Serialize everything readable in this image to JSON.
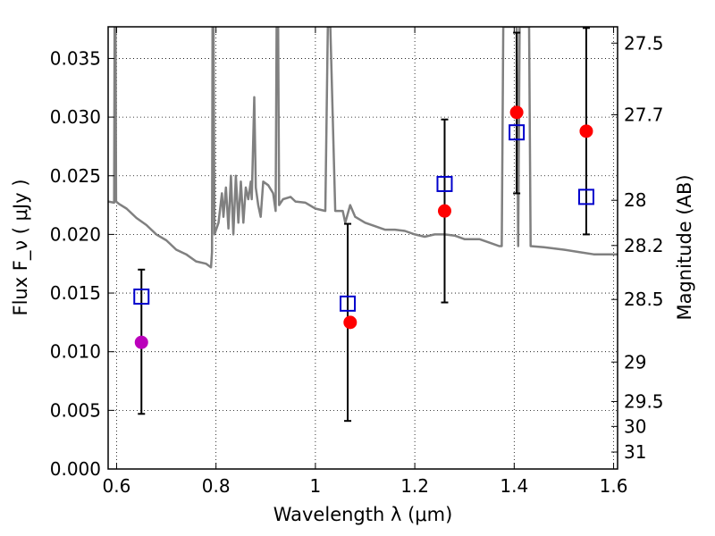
{
  "chart_data": {
    "type": "scatter",
    "xlabel": "Wavelength  λ (μm)",
    "ylabel": "Flux  F_ν  ( μJy )",
    "y2label": "Magnitude (AB)",
    "xlim": [
      0.583,
      1.608
    ],
    "ylim": [
      0.0,
      0.0377
    ],
    "grid": true,
    "x_ticks": [
      {
        "value": 0.6,
        "label": "0.6"
      },
      {
        "value": 0.8,
        "label": "0.8"
      },
      {
        "value": 1.0,
        "label": "1"
      },
      {
        "value": 1.2,
        "label": "1.2"
      },
      {
        "value": 1.4,
        "label": "1.4"
      },
      {
        "value": 1.6,
        "label": "1.6"
      }
    ],
    "y_ticks": [
      {
        "value": 0.0,
        "label": "0.000"
      },
      {
        "value": 0.005,
        "label": "0.005"
      },
      {
        "value": 0.01,
        "label": "0.010"
      },
      {
        "value": 0.015,
        "label": "0.015"
      },
      {
        "value": 0.02,
        "label": "0.020"
      },
      {
        "value": 0.025,
        "label": "0.025"
      },
      {
        "value": 0.03,
        "label": "0.030"
      },
      {
        "value": 0.035,
        "label": "0.035"
      }
    ],
    "y2_ticks": [
      {
        "value": 27.5,
        "label": "27.5"
      },
      {
        "value": 27.7,
        "label": "27.7"
      },
      {
        "value": 28.0,
        "label": "28"
      },
      {
        "value": 28.2,
        "label": "28.2"
      },
      {
        "value": 28.5,
        "label": "28.5"
      },
      {
        "value": 29.0,
        "label": "29"
      },
      {
        "value": 29.5,
        "label": "29.5"
      },
      {
        "value": 30.0,
        "label": "30"
      },
      {
        "value": 31.0,
        "label": "31"
      }
    ],
    "model_spectrum": {
      "color": "#808080",
      "points": [
        [
          0.583,
          0.0228
        ],
        [
          0.595,
          0.0227
        ],
        [
          0.596,
          0.0377
        ],
        [
          0.598,
          0.0377
        ],
        [
          0.599,
          0.0228
        ],
        [
          0.605,
          0.0226
        ],
        [
          0.62,
          0.0222
        ],
        [
          0.64,
          0.0214
        ],
        [
          0.66,
          0.0208
        ],
        [
          0.68,
          0.02
        ],
        [
          0.7,
          0.0195
        ],
        [
          0.72,
          0.0187
        ],
        [
          0.74,
          0.0183
        ],
        [
          0.76,
          0.0177
        ],
        [
          0.78,
          0.0175
        ],
        [
          0.79,
          0.0172
        ],
        [
          0.792,
          0.0185
        ],
        [
          0.793,
          0.0377
        ],
        [
          0.795,
          0.0377
        ],
        [
          0.797,
          0.02
        ],
        [
          0.805,
          0.021
        ],
        [
          0.812,
          0.0235
        ],
        [
          0.815,
          0.0215
        ],
        [
          0.82,
          0.024
        ],
        [
          0.825,
          0.0205
        ],
        [
          0.83,
          0.025
        ],
        [
          0.835,
          0.02
        ],
        [
          0.84,
          0.025
        ],
        [
          0.845,
          0.021
        ],
        [
          0.85,
          0.0245
        ],
        [
          0.855,
          0.021
        ],
        [
          0.86,
          0.024
        ],
        [
          0.865,
          0.023
        ],
        [
          0.87,
          0.0245
        ],
        [
          0.872,
          0.023
        ],
        [
          0.877,
          0.0317
        ],
        [
          0.88,
          0.024
        ],
        [
          0.885,
          0.0225
        ],
        [
          0.89,
          0.0215
        ],
        [
          0.895,
          0.0245
        ],
        [
          0.905,
          0.0242
        ],
        [
          0.915,
          0.0235
        ],
        [
          0.92,
          0.022
        ],
        [
          0.922,
          0.0377
        ],
        [
          0.925,
          0.0377
        ],
        [
          0.927,
          0.0225
        ],
        [
          0.935,
          0.023
        ],
        [
          0.95,
          0.0232
        ],
        [
          0.96,
          0.0228
        ],
        [
          0.98,
          0.0227
        ],
        [
          1.0,
          0.0222
        ],
        [
          1.02,
          0.022
        ],
        [
          1.025,
          0.0377
        ],
        [
          1.03,
          0.0377
        ],
        [
          1.04,
          0.022
        ],
        [
          1.055,
          0.022
        ],
        [
          1.06,
          0.021
        ],
        [
          1.07,
          0.0225
        ],
        [
          1.08,
          0.0215
        ],
        [
          1.1,
          0.021
        ],
        [
          1.12,
          0.0207
        ],
        [
          1.14,
          0.0204
        ],
        [
          1.16,
          0.0204
        ],
        [
          1.18,
          0.0203
        ],
        [
          1.2,
          0.02
        ],
        [
          1.22,
          0.0198
        ],
        [
          1.24,
          0.02
        ],
        [
          1.26,
          0.02
        ],
        [
          1.28,
          0.0199
        ],
        [
          1.3,
          0.0196
        ],
        [
          1.33,
          0.0196
        ],
        [
          1.35,
          0.0193
        ],
        [
          1.37,
          0.019
        ],
        [
          1.375,
          0.019
        ],
        [
          1.378,
          0.0377
        ],
        [
          1.39,
          0.0377
        ],
        [
          1.405,
          0.0377
        ],
        [
          1.408,
          0.019
        ],
        [
          1.411,
          0.0377
        ],
        [
          1.42,
          0.0377
        ],
        [
          1.43,
          0.0377
        ],
        [
          1.433,
          0.019
        ],
        [
          1.46,
          0.0189
        ],
        [
          1.5,
          0.0187
        ],
        [
          1.53,
          0.0185
        ],
        [
          1.56,
          0.0183
        ],
        [
          1.59,
          0.0183
        ],
        [
          1.608,
          0.0183
        ]
      ]
    },
    "errorbars": [
      {
        "x": 0.65,
        "low": 0.0047,
        "high": 0.017
      },
      {
        "x": 1.065,
        "low": 0.0041,
        "high": 0.0209
      },
      {
        "x": 1.26,
        "low": 0.0142,
        "high": 0.0298
      },
      {
        "x": 1.405,
        "low": 0.0235,
        "high": 0.0372
      },
      {
        "x": 1.545,
        "low": 0.02,
        "high": 0.0376
      }
    ],
    "series": [
      {
        "marker": "square-open",
        "color": "#0000cc",
        "points": [
          {
            "x": 0.65,
            "y": 0.0147
          },
          {
            "x": 1.065,
            "y": 0.0141
          },
          {
            "x": 1.26,
            "y": 0.0243
          },
          {
            "x": 1.405,
            "y": 0.0287
          },
          {
            "x": 1.545,
            "y": 0.0232
          }
        ]
      },
      {
        "marker": "circle-filled",
        "color": "#ff0000",
        "points": [
          {
            "x": 1.07,
            "y": 0.0125
          },
          {
            "x": 1.26,
            "y": 0.022
          },
          {
            "x": 1.405,
            "y": 0.0304
          },
          {
            "x": 1.545,
            "y": 0.0288
          }
        ]
      },
      {
        "marker": "circle-filled",
        "color": "#bb00bb",
        "points": [
          {
            "x": 0.65,
            "y": 0.0108
          }
        ]
      }
    ]
  }
}
